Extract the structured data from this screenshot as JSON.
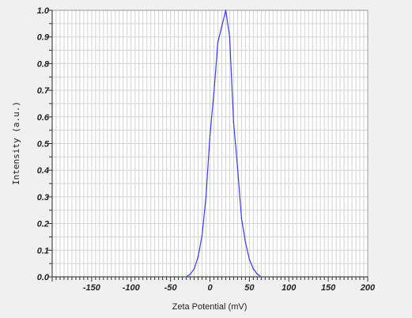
{
  "chart_data": {
    "type": "line",
    "title": "",
    "xlabel": "Zeta Potential (mV)",
    "ylabel": "Intensity (a.u.)",
    "xlim": [
      -200,
      200
    ],
    "ylim": [
      0,
      1
    ],
    "x_ticks": [
      -150,
      -100,
      -50,
      0,
      50,
      100,
      150,
      200
    ],
    "x_tick_labels": [
      "-150",
      "-100",
      "-50",
      "0",
      "50",
      "100",
      "150",
      "200"
    ],
    "y_ticks": [
      0,
      0.1,
      0.2,
      0.3,
      0.4,
      0.5,
      0.6,
      0.7,
      0.8,
      0.9,
      1.0
    ],
    "y_tick_labels": [
      "0.0",
      "0.1",
      "0.2",
      "0.3",
      "0.4",
      "0.5",
      "0.6",
      "0.7",
      "0.8",
      "0.9",
      "1.0"
    ],
    "grid": true,
    "line_color": "#3a3af0",
    "series": [
      {
        "x": [
          -30,
          -25,
          -20,
          -15,
          -10,
          -5,
          0,
          5,
          10,
          15,
          20,
          25,
          30,
          35,
          40,
          45,
          50,
          55,
          60,
          65
        ],
        "values": [
          0.0,
          0.01,
          0.03,
          0.075,
          0.155,
          0.3,
          0.53,
          0.69,
          0.88,
          0.94,
          1.0,
          0.9,
          0.58,
          0.41,
          0.22,
          0.13,
          0.065,
          0.03,
          0.01,
          0.0
        ]
      }
    ]
  }
}
